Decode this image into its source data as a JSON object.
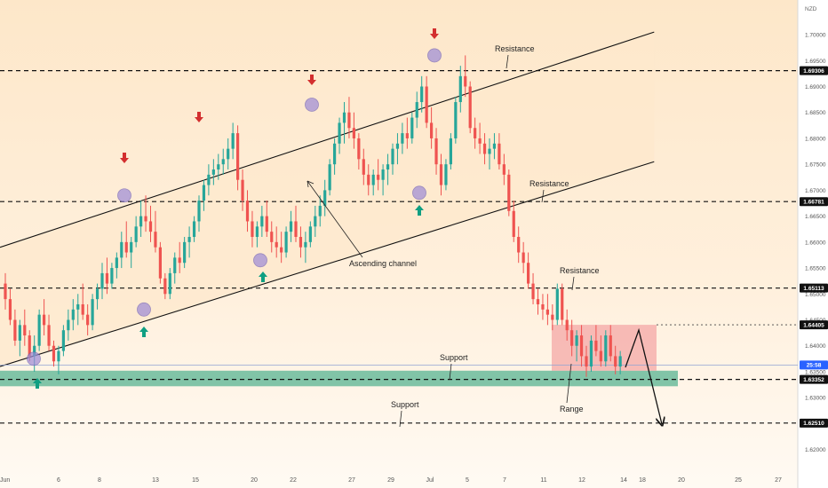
{
  "chart_data": {
    "type": "candlestick",
    "currency_label": "NZD",
    "y_axis": {
      "ylim": [
        1.616,
        1.706
      ],
      "ticks": [
        "1.70000",
        "1.69500",
        "1.69000",
        "1.68500",
        "1.68000",
        "1.67500",
        "1.67000",
        "1.66500",
        "1.66000",
        "1.65500",
        "1.65000",
        "1.64500",
        "1.64000",
        "1.63500",
        "1.63000",
        "1.62500",
        "1.62000"
      ],
      "tick_values": [
        1.7,
        1.695,
        1.69,
        1.685,
        1.68,
        1.675,
        1.67,
        1.665,
        1.66,
        1.655,
        1.65,
        1.645,
        1.64,
        1.635,
        1.63,
        1.625,
        1.62
      ]
    },
    "x_axis": {
      "labels": [
        "Jun",
        "6",
        "8",
        "13",
        "15",
        "20",
        "22",
        "27",
        "29",
        "Jul",
        "5",
        "7",
        "11",
        "12",
        "14",
        "18",
        "20",
        "25",
        "27"
      ],
      "label_positions": [
        0,
        66,
        112,
        175,
        220,
        286,
        330,
        396,
        440,
        484,
        526,
        568,
        612,
        655,
        702,
        723,
        767,
        831,
        876
      ]
    },
    "price_labels": [
      {
        "id": "r1",
        "text": "1.69306",
        "value": 1.69306,
        "dark": true
      },
      {
        "id": "r2",
        "text": "1.66781",
        "value": 1.66781,
        "dark": true
      },
      {
        "id": "r3",
        "text": "1.65113",
        "value": 1.65113,
        "dark": true
      },
      {
        "id": "rng",
        "text": "1.64405",
        "value": 1.64405,
        "dark": true
      },
      {
        "id": "cur",
        "text": "1.63630",
        "sub": "25:58",
        "value": 1.6363,
        "dark": false,
        "color": "#2962ff"
      },
      {
        "id": "s1",
        "text": "1.63352",
        "value": 1.63352,
        "dark": true
      },
      {
        "id": "s2",
        "text": "1.62510",
        "value": 1.6251,
        "dark": true
      }
    ],
    "levels": [
      {
        "name": "Resistance",
        "value": 1.69306,
        "style": "dashed"
      },
      {
        "name": "Resistance",
        "value": 1.66781,
        "style": "dashed"
      },
      {
        "name": "Resistance",
        "value": 1.65113,
        "style": "dashed"
      },
      {
        "name": "Support",
        "value": 1.63352,
        "style": "dashed"
      },
      {
        "name": "Support",
        "value": 1.6251,
        "style": "dashed"
      }
    ],
    "annotations": {
      "resistance_1": "Resistance",
      "resistance_2": "Resistance",
      "resistance_3": "Resistance",
      "support_1": "Support",
      "support_2": "Support",
      "ascending_channel": "Ascending channel",
      "range": "Range"
    },
    "candles": [
      [
        1.652,
        1.654,
        1.647,
        1.649
      ],
      [
        1.649,
        1.651,
        1.644,
        1.645
      ],
      [
        1.645,
        1.647,
        1.64,
        1.641
      ],
      [
        1.641,
        1.645,
        1.638,
        1.644
      ],
      [
        1.644,
        1.647,
        1.64,
        1.642
      ],
      [
        1.642,
        1.643,
        1.637,
        1.638
      ],
      [
        1.638,
        1.642,
        1.635,
        1.64
      ],
      [
        1.64,
        1.647,
        1.639,
        1.646
      ],
      [
        1.646,
        1.649,
        1.642,
        1.644
      ],
      [
        1.644,
        1.646,
        1.639,
        1.64
      ],
      [
        1.64,
        1.641,
        1.636,
        1.637
      ],
      [
        1.637,
        1.64,
        1.6345,
        1.639
      ],
      [
        1.639,
        1.644,
        1.638,
        1.643
      ],
      [
        1.643,
        1.647,
        1.641,
        1.645
      ],
      [
        1.645,
        1.649,
        1.643,
        1.647
      ],
      [
        1.647,
        1.65,
        1.644,
        1.648
      ],
      [
        1.648,
        1.652,
        1.645,
        1.646
      ],
      [
        1.646,
        1.648,
        1.642,
        1.644
      ],
      [
        1.644,
        1.65,
        1.643,
        1.649
      ],
      [
        1.649,
        1.652,
        1.647,
        1.651
      ],
      [
        1.651,
        1.656,
        1.649,
        1.654
      ],
      [
        1.654,
        1.657,
        1.65,
        1.652
      ],
      [
        1.652,
        1.656,
        1.651,
        1.655
      ],
      [
        1.655,
        1.658,
        1.653,
        1.657
      ],
      [
        1.657,
        1.662,
        1.655,
        1.66
      ],
      [
        1.66,
        1.664,
        1.657,
        1.658
      ],
      [
        1.658,
        1.661,
        1.655,
        1.66
      ],
      [
        1.66,
        1.665,
        1.659,
        1.663
      ],
      [
        1.663,
        1.668,
        1.661,
        1.665
      ],
      [
        1.665,
        1.669,
        1.662,
        1.664
      ],
      [
        1.664,
        1.667,
        1.66,
        1.662
      ],
      [
        1.662,
        1.666,
        1.658,
        1.659
      ],
      [
        1.659,
        1.66,
        1.652,
        1.653
      ],
      [
        1.653,
        1.654,
        1.649,
        1.65
      ],
      [
        1.65,
        1.655,
        1.649,
        1.654
      ],
      [
        1.654,
        1.658,
        1.652,
        1.657
      ],
      [
        1.657,
        1.66,
        1.654,
        1.656
      ],
      [
        1.656,
        1.661,
        1.655,
        1.66
      ],
      [
        1.66,
        1.663,
        1.657,
        1.661
      ],
      [
        1.661,
        1.665,
        1.66,
        1.664
      ],
      [
        1.664,
        1.669,
        1.662,
        1.668
      ],
      [
        1.668,
        1.672,
        1.666,
        1.671
      ],
      [
        1.671,
        1.675,
        1.669,
        1.673
      ],
      [
        1.673,
        1.676,
        1.671,
        1.674
      ],
      [
        1.674,
        1.677,
        1.672,
        1.675
      ],
      [
        1.675,
        1.678,
        1.673,
        1.676
      ],
      [
        1.676,
        1.68,
        1.674,
        1.678
      ],
      [
        1.678,
        1.683,
        1.676,
        1.681
      ],
      [
        1.681,
        1.6825,
        1.67,
        1.672
      ],
      [
        1.672,
        1.674,
        1.666,
        1.668
      ],
      [
        1.668,
        1.67,
        1.662,
        1.664
      ],
      [
        1.664,
        1.666,
        1.659,
        1.661
      ],
      [
        1.661,
        1.664,
        1.659,
        1.663
      ],
      [
        1.663,
        1.667,
        1.661,
        1.665
      ],
      [
        1.665,
        1.668,
        1.661,
        1.662
      ],
      [
        1.662,
        1.664,
        1.658,
        1.66
      ],
      [
        1.66,
        1.663,
        1.657,
        1.659
      ],
      [
        1.659,
        1.662,
        1.656,
        1.658
      ],
      [
        1.658,
        1.663,
        1.657,
        1.662
      ],
      [
        1.662,
        1.666,
        1.66,
        1.664
      ],
      [
        1.664,
        1.667,
        1.66,
        1.661
      ],
      [
        1.661,
        1.663,
        1.657,
        1.659
      ],
      [
        1.659,
        1.662,
        1.656,
        1.66
      ],
      [
        1.66,
        1.664,
        1.659,
        1.663
      ],
      [
        1.663,
        1.667,
        1.661,
        1.665
      ],
      [
        1.665,
        1.669,
        1.663,
        1.667
      ],
      [
        1.667,
        1.672,
        1.665,
        1.67
      ],
      [
        1.67,
        1.676,
        1.669,
        1.675
      ],
      [
        1.675,
        1.68,
        1.673,
        1.679
      ],
      [
        1.679,
        1.684,
        1.677,
        1.683
      ],
      [
        1.683,
        1.687,
        1.679,
        1.685
      ],
      [
        1.685,
        1.688,
        1.68,
        1.682
      ],
      [
        1.682,
        1.685,
        1.678,
        1.68
      ],
      [
        1.68,
        1.681,
        1.674,
        1.676
      ],
      [
        1.676,
        1.678,
        1.671,
        1.673
      ],
      [
        1.673,
        1.675,
        1.669,
        1.671
      ],
      [
        1.671,
        1.674,
        1.669,
        1.673
      ],
      [
        1.673,
        1.676,
        1.67,
        1.672
      ],
      [
        1.672,
        1.675,
        1.669,
        1.674
      ],
      [
        1.674,
        1.677,
        1.671,
        1.675
      ],
      [
        1.675,
        1.679,
        1.673,
        1.678
      ],
      [
        1.678,
        1.681,
        1.675,
        1.679
      ],
      [
        1.679,
        1.683,
        1.677,
        1.681
      ],
      [
        1.681,
        1.684,
        1.678,
        1.68
      ],
      [
        1.68,
        1.685,
        1.679,
        1.684
      ],
      [
        1.684,
        1.689,
        1.682,
        1.687
      ],
      [
        1.687,
        1.692,
        1.685,
        1.69
      ],
      [
        1.69,
        1.692,
        1.682,
        1.683
      ],
      [
        1.683,
        1.686,
        1.678,
        1.68
      ],
      [
        1.68,
        1.682,
        1.673,
        1.675
      ],
      [
        1.675,
        1.677,
        1.669,
        1.671
      ],
      [
        1.671,
        1.676,
        1.67,
        1.675
      ],
      [
        1.675,
        1.681,
        1.674,
        1.68
      ],
      [
        1.68,
        1.688,
        1.679,
        1.687
      ],
      [
        1.687,
        1.694,
        1.685,
        1.692
      ],
      [
        1.692,
        1.696,
        1.688,
        1.69
      ],
      [
        1.69,
        1.691,
        1.681,
        1.682
      ],
      [
        1.682,
        1.684,
        1.678,
        1.68
      ],
      [
        1.68,
        1.683,
        1.677,
        1.679
      ],
      [
        1.679,
        1.681,
        1.675,
        1.677
      ],
      [
        1.677,
        1.68,
        1.674,
        1.678
      ],
      [
        1.678,
        1.681,
        1.676,
        1.679
      ],
      [
        1.679,
        1.681,
        1.674,
        1.675
      ],
      [
        1.675,
        1.677,
        1.671,
        1.673
      ],
      [
        1.673,
        1.674,
        1.665,
        1.666
      ],
      [
        1.666,
        1.668,
        1.66,
        1.661
      ],
      [
        1.661,
        1.663,
        1.656,
        1.658
      ],
      [
        1.658,
        1.66,
        1.654,
        1.656
      ],
      [
        1.656,
        1.658,
        1.651,
        1.652
      ],
      [
        1.652,
        1.654,
        1.648,
        1.649
      ],
      [
        1.649,
        1.651,
        1.646,
        1.648
      ],
      [
        1.648,
        1.65,
        1.645,
        1.647
      ],
      [
        1.647,
        1.65,
        1.644,
        1.646
      ],
      [
        1.646,
        1.648,
        1.643,
        1.645
      ],
      [
        1.645,
        1.652,
        1.644,
        1.651
      ],
      [
        1.651,
        1.652,
        1.644,
        1.645
      ],
      [
        1.645,
        1.647,
        1.641,
        1.643
      ],
      [
        1.643,
        1.645,
        1.638,
        1.64
      ],
      [
        1.64,
        1.643,
        1.637,
        1.642
      ],
      [
        1.642,
        1.644,
        1.636,
        1.638
      ],
      [
        1.638,
        1.64,
        1.634,
        1.636
      ],
      [
        1.636,
        1.642,
        1.635,
        1.641
      ],
      [
        1.641,
        1.644,
        1.638,
        1.639
      ],
      [
        1.639,
        1.642,
        1.636,
        1.637
      ],
      [
        1.637,
        1.643,
        1.636,
        1.642
      ],
      [
        1.642,
        1.644,
        1.637,
        1.638
      ],
      [
        1.638,
        1.64,
        1.6345,
        1.636
      ],
      [
        1.636,
        1.639,
        1.6345,
        1.638
      ]
    ],
    "channel": {
      "upper": [
        [
          0,
          1.659
        ],
        [
          134,
          1.7005
        ]
      ],
      "lower": [
        [
          0,
          1.636
        ],
        [
          134,
          1.6755
        ]
      ],
      "end_index": 134
    },
    "range_box": {
      "top": 1.64405,
      "bottom": 1.6352,
      "x_start_label": "11",
      "x_end_label": "18"
    },
    "support_zone": {
      "top": 1.6352,
      "bottom": 1.6322
    },
    "current_price": 1.6363,
    "colors": {
      "up": "#26a69a",
      "down": "#ef5350",
      "channel_fill": "#fde8cc",
      "range_fill": "#f4a3a3",
      "support_fill": "#4caf8c",
      "marker_circle": "#9c8ad6",
      "arrow_down": "#d32f2f",
      "arrow_up": "#0f9f82"
    }
  }
}
